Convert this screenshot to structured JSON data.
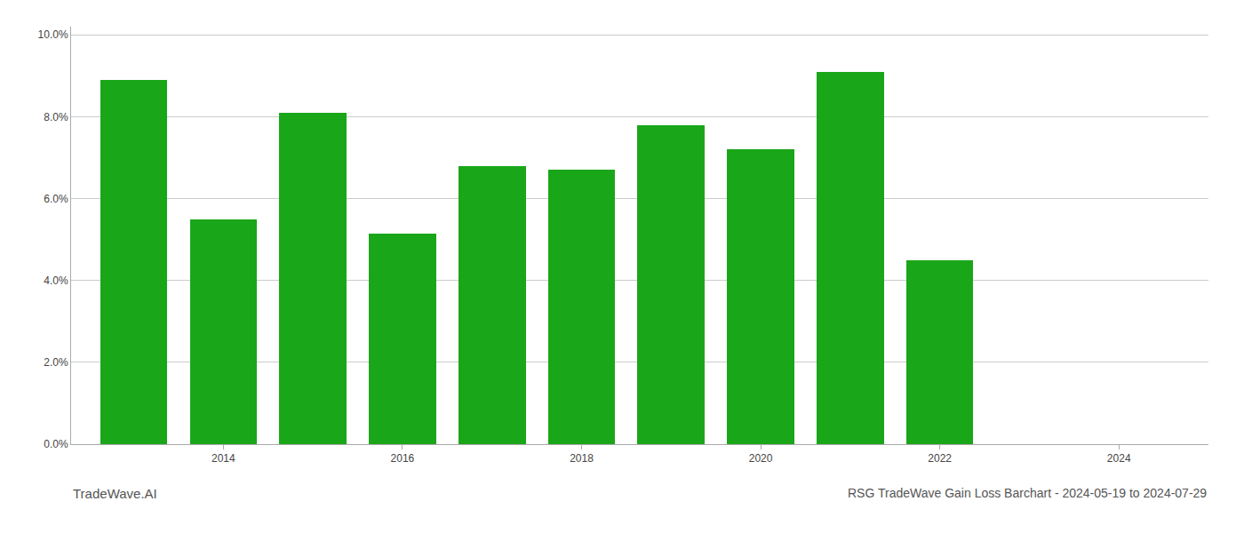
{
  "chart_data": {
    "type": "bar",
    "title": "RSG TradeWave Gain Loss Barchart - 2024-05-19 to 2024-07-29",
    "annotations": [
      "TradeWave.AI"
    ],
    "x": [
      2013,
      2014,
      2015,
      2016,
      2017,
      2018,
      2019,
      2020,
      2021,
      2022,
      2023
    ],
    "values": [
      0.089,
      0.055,
      0.081,
      0.0515,
      0.068,
      0.067,
      0.078,
      0.072,
      0.091,
      0.045,
      0.0
    ],
    "color": "#1aa619",
    "xlim": [
      2012.3,
      2025.0
    ],
    "xticks": [
      2014,
      2016,
      2018,
      2020,
      2022,
      2024
    ],
    "ylim": [
      0.0,
      0.102
    ],
    "yticks": [
      {
        "value": 0.0,
        "label": "0.0%"
      },
      {
        "value": 0.02,
        "label": "2.0%"
      },
      {
        "value": 0.04,
        "label": "4.0%"
      },
      {
        "value": 0.06,
        "label": "6.0%"
      },
      {
        "value": 0.08,
        "label": "8.0%"
      },
      {
        "value": 0.1,
        "label": "10.0%"
      }
    ],
    "grid": true
  }
}
